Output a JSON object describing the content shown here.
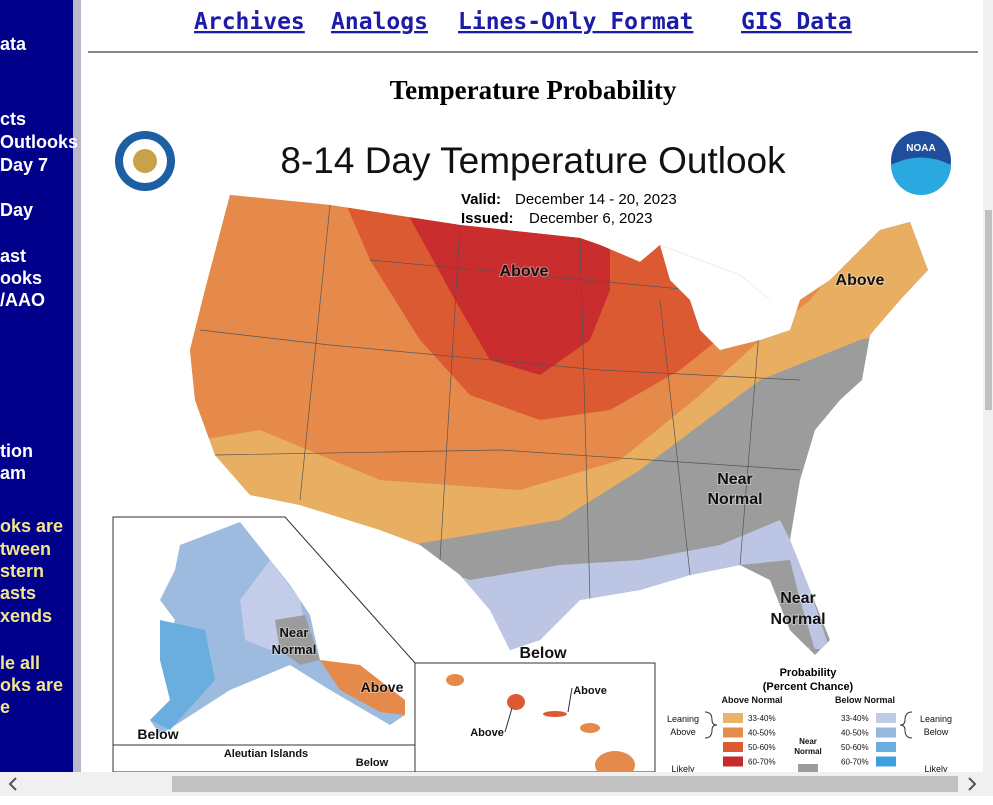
{
  "sidebar": {
    "items": [
      {
        "text": "ata"
      },
      {
        "text": "cts"
      },
      {
        "text": "Outlooks"
      },
      {
        "text": "Day 7"
      },
      {
        "text": "Day"
      },
      {
        "text": "ast"
      },
      {
        "text": "ooks"
      },
      {
        "text": "/AAO"
      },
      {
        "text": "tion"
      },
      {
        "text": "am"
      },
      {
        "text": "oks are"
      },
      {
        "text": "tween"
      },
      {
        "text": "stern"
      },
      {
        "text": "asts"
      },
      {
        "text": "xends"
      },
      {
        "text": "le all"
      },
      {
        "text": "oks are"
      },
      {
        "text": "e"
      }
    ]
  },
  "links": [
    "Archives",
    "Analogs",
    "Lines-Only Format",
    "GIS Data"
  ],
  "heading": "Temperature Probability",
  "map": {
    "title": "8-14 Day Temperature Outlook",
    "valid_label": "Valid:",
    "valid": "December 14 - 20, 2023",
    "issued_label": "Issued:",
    "issued": "December 6, 2023",
    "logo_right": "NOAA",
    "labels": [
      {
        "lines": [
          "Above"
        ]
      },
      {
        "lines": [
          "Above"
        ]
      },
      {
        "lines": [
          "Near",
          "Normal"
        ]
      },
      {
        "lines": [
          "Near",
          "Normal"
        ]
      },
      {
        "lines": [
          "Below"
        ]
      },
      {
        "lines": [
          "Near",
          "Normal"
        ]
      },
      {
        "lines": [
          "Above"
        ]
      },
      {
        "lines": [
          "Below"
        ]
      },
      {
        "lines": [
          "Aleutian Islands"
        ]
      },
      {
        "lines": [
          "Below"
        ]
      },
      {
        "lines": [
          "Above"
        ]
      },
      {
        "lines": [
          "Above"
        ]
      }
    ]
  },
  "legend": {
    "title": "Probability",
    "subtitle": "(Percent Chance)",
    "above_header": "Above Normal",
    "below_header": "Below Normal",
    "leaning_above": [
      "Leaning",
      "Above"
    ],
    "leaning_below": [
      "Leaning",
      "Below"
    ],
    "above_ranges": [
      "33-40%",
      "40-50%",
      "50-60%",
      "60-70%"
    ],
    "below_ranges": [
      "33-40%",
      "40-50%",
      "50-60%",
      "60-70%"
    ],
    "near": [
      "Near",
      "Normal"
    ],
    "likely_above": "Likely",
    "likely_below": "Likely"
  }
}
